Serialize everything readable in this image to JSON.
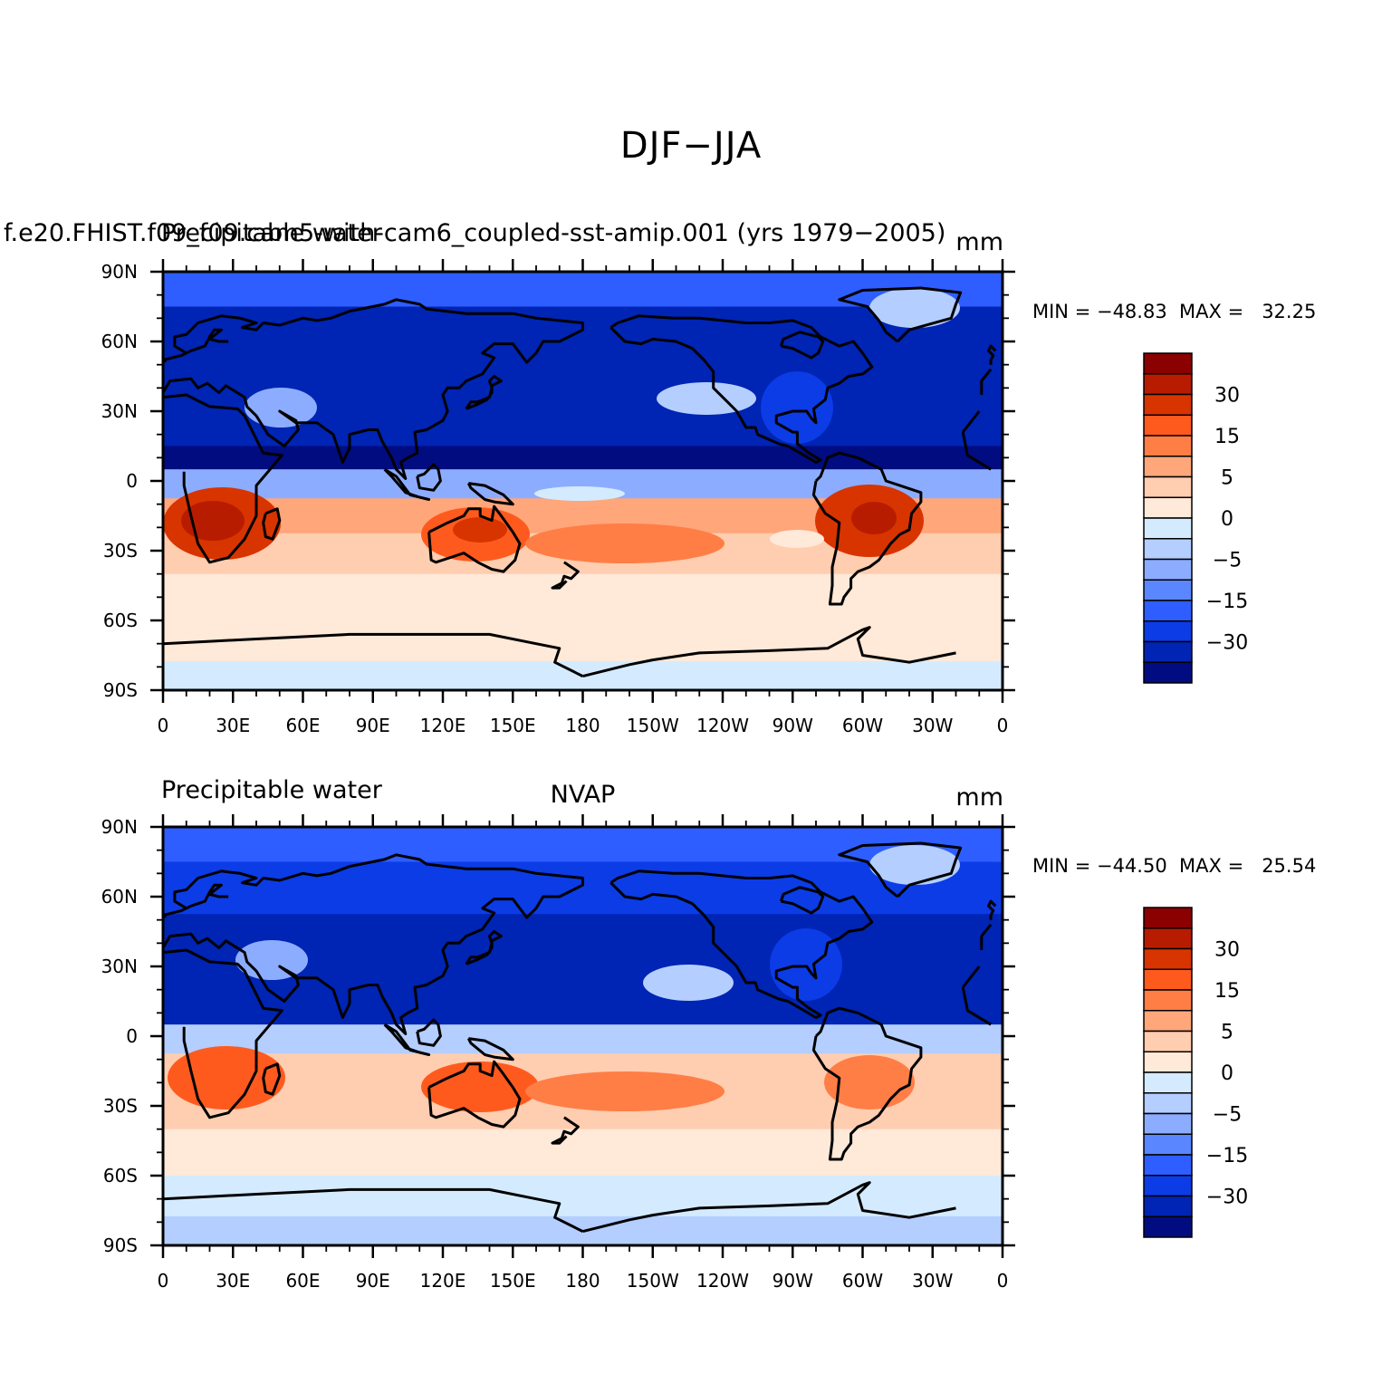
{
  "title": "DJF−JJA",
  "panels": [
    {
      "left_string": "Precipitable water",
      "center_string": "f.e20.FHIST.f09_f09.cam5-with-cam6_coupled-sst-amip.001 (yrs 1979−2005)",
      "right_string": "mm",
      "minmax_text": "MIN = −48.83  MAX =   32.25"
    },
    {
      "left_string": "Precipitable water",
      "center_string": "NVAP",
      "right_string": "mm",
      "minmax_text": "MIN = −44.50  MAX =   25.54"
    }
  ],
  "axes": {
    "x_ticks": [
      "0",
      "30E",
      "60E",
      "90E",
      "120E",
      "150E",
      "180",
      "150W",
      "120W",
      "90W",
      "60W",
      "30W",
      "0"
    ],
    "y_ticks": [
      "90N",
      "60N",
      "30N",
      "0",
      "30S",
      "60S",
      "90S"
    ]
  },
  "colorbar": {
    "colors": [
      "#8b0000",
      "#b81c00",
      "#d83400",
      "#ff5a1e",
      "#ff7e46",
      "#ffa67a",
      "#ffcdb0",
      "#ffe9d8",
      "#d4ebff",
      "#b4ceff",
      "#8cadff",
      "#5a87ff",
      "#2e5eff",
      "#0b3ce6",
      "#0024b4",
      "#000c80"
    ],
    "labels": [
      "30",
      "15",
      "5",
      "0",
      "−5",
      "−15",
      "−30"
    ]
  },
  "chart_data": [
    {
      "type": "heatmap",
      "title": "DJF−JJA",
      "subtitle": "f.e20.FHIST.f09_f09.cam5-with-cam6_coupled-sst-amip.001 (yrs 1979−2005)",
      "variable": "Precipitable water",
      "units": "mm",
      "xlim": [
        0,
        360
      ],
      "ylim": [
        -90,
        90
      ],
      "min": -48.83,
      "max": 32.25,
      "latitude_bands": [
        {
          "lat": 85,
          "value": -12
        },
        {
          "lat": 65,
          "value": -22
        },
        {
          "lat": 40,
          "value": -25
        },
        {
          "lat": 20,
          "value": -30
        },
        {
          "lat": 10,
          "value": -35
        },
        {
          "lat": 0,
          "value": -3
        },
        {
          "lat": -15,
          "value": 10
        },
        {
          "lat": -30,
          "value": 8
        },
        {
          "lat": -50,
          "value": 4
        },
        {
          "lat": -70,
          "value": 2
        },
        {
          "lat": -85,
          "value": 0.5
        }
      ]
    },
    {
      "type": "heatmap",
      "title": "DJF−JJA",
      "subtitle": "NVAP",
      "variable": "Precipitable water",
      "units": "mm",
      "xlim": [
        0,
        360
      ],
      "ylim": [
        -90,
        90
      ],
      "min": -44.5,
      "max": 25.54,
      "latitude_bands": [
        {
          "lat": 85,
          "value": -12
        },
        {
          "lat": 65,
          "value": -20
        },
        {
          "lat": 40,
          "value": -25
        },
        {
          "lat": 20,
          "value": -30
        },
        {
          "lat": 10,
          "value": -28
        },
        {
          "lat": 0,
          "value": -2
        },
        {
          "lat": -15,
          "value": 9
        },
        {
          "lat": -30,
          "value": 7
        },
        {
          "lat": -50,
          "value": 3
        },
        {
          "lat": -70,
          "value": 1
        },
        {
          "lat": -85,
          "value": -1
        }
      ]
    }
  ]
}
